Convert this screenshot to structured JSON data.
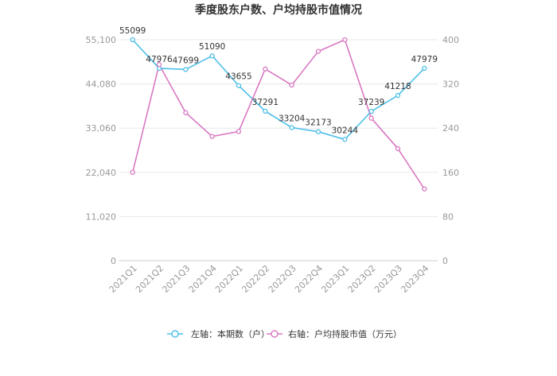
{
  "chart_data": {
    "type": "line",
    "title": "季度股东户数、户均持股市值情况",
    "categories": [
      "2021Q1",
      "2021Q2",
      "2021Q3",
      "2021Q4",
      "2022Q1",
      "2022Q2",
      "2022Q3",
      "2022Q4",
      "2023Q1",
      "2023Q2",
      "2023Q3",
      "2023Q4"
    ],
    "left_axis": {
      "ticks": [
        "0",
        "11,020",
        "22,040",
        "33,060",
        "44,080",
        "55,100"
      ],
      "ylim": [
        0,
        55100
      ]
    },
    "right_axis": {
      "ticks": [
        "0",
        "80",
        "160",
        "240",
        "320",
        "400"
      ],
      "ylim": [
        0,
        400
      ]
    },
    "series": [
      {
        "name": "左轴：本期数（户）",
        "axis": "left",
        "color": "#4dbfe8",
        "values": [
          55099,
          47976,
          47699,
          51090,
          43655,
          37291,
          33204,
          32173,
          30244,
          37239,
          41218,
          47979
        ],
        "labels": [
          "55099",
          "47976",
          "47699",
          "51090",
          "43655",
          "37291",
          "33204",
          "32173",
          "30244",
          "37239",
          "41218",
          "47979"
        ]
      },
      {
        "name": "右轴：户均持股市值（万元）",
        "axis": "right",
        "color": "#d978c2",
        "values": [
          160,
          355,
          268,
          225,
          234,
          347,
          318,
          379,
          400,
          258,
          203,
          130
        ]
      }
    ],
    "grid": "horizontal",
    "legend_position": "bottom-center"
  }
}
